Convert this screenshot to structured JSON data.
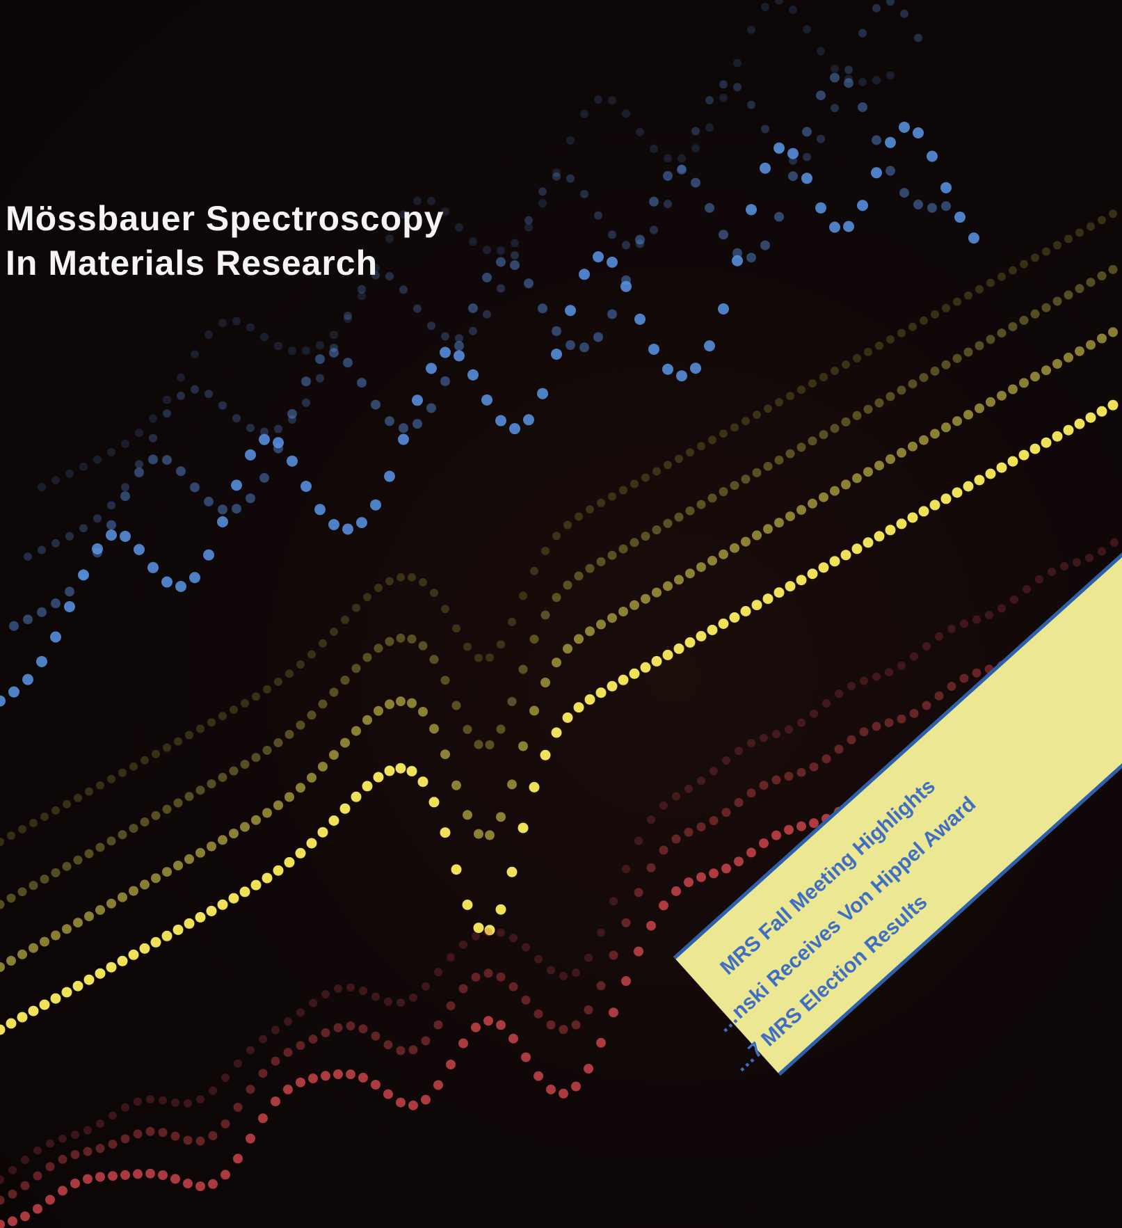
{
  "title": {
    "line1": "Mössbauer Spectroscopy",
    "line2": "In Materials Research"
  },
  "banner": {
    "items": [
      "MRS Fall Meeting Highlights",
      "…nski Receives Von Hippel Award",
      "…7 MRS Election Results"
    ]
  },
  "colors": {
    "background": "#0b0607",
    "title_text": "#f4f4f4",
    "banner_fill": "#ece793",
    "banner_text": "#3f6fc2",
    "dots_blue": "#5a95e6",
    "dots_yellow": "#efe15a",
    "dots_red": "#c8444a"
  }
}
